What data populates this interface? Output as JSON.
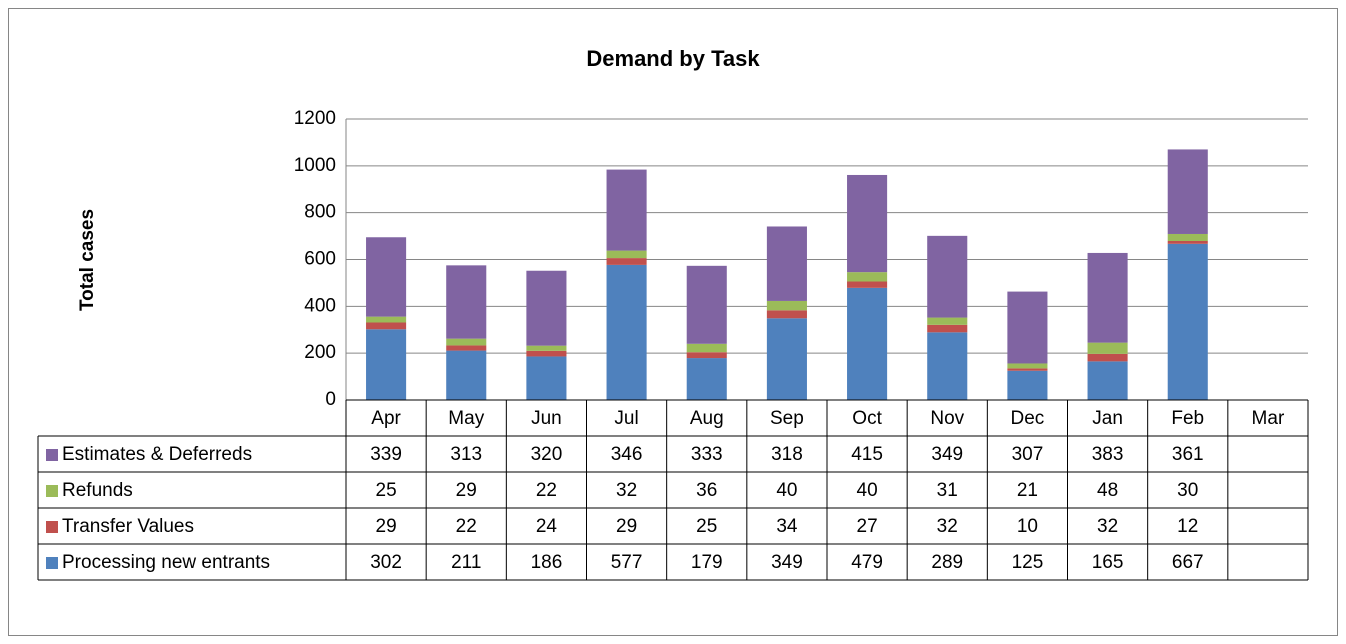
{
  "chart_data": {
    "type": "bar",
    "stacked": true,
    "title": "Demand by Task",
    "y_label": "Total cases",
    "categories": [
      "Apr",
      "May",
      "Jun",
      "Jul",
      "Aug",
      "Sep",
      "Oct",
      "Nov",
      "Dec",
      "Jan",
      "Feb",
      "Mar"
    ],
    "series": [
      {
        "name": "Processing new entrants",
        "color": "#4f81bd",
        "values": [
          302,
          211,
          186,
          577,
          179,
          349,
          479,
          289,
          125,
          165,
          667,
          null
        ]
      },
      {
        "name": "Transfer Values",
        "color": "#c0504d",
        "values": [
          29,
          22,
          24,
          29,
          25,
          34,
          27,
          32,
          10,
          32,
          12,
          null
        ]
      },
      {
        "name": "Refunds",
        "color": "#9bbb59",
        "values": [
          25,
          29,
          22,
          32,
          36,
          40,
          40,
          31,
          21,
          48,
          30,
          null
        ]
      },
      {
        "name": "Estimates & Deferreds",
        "color": "#8064a2",
        "values": [
          339,
          313,
          320,
          346,
          333,
          318,
          415,
          349,
          307,
          383,
          361,
          null
        ]
      }
    ],
    "ylim": [
      0,
      1200
    ],
    "yticks": [
      0,
      200,
      400,
      600,
      800,
      1000,
      1200
    ],
    "grid": true
  }
}
